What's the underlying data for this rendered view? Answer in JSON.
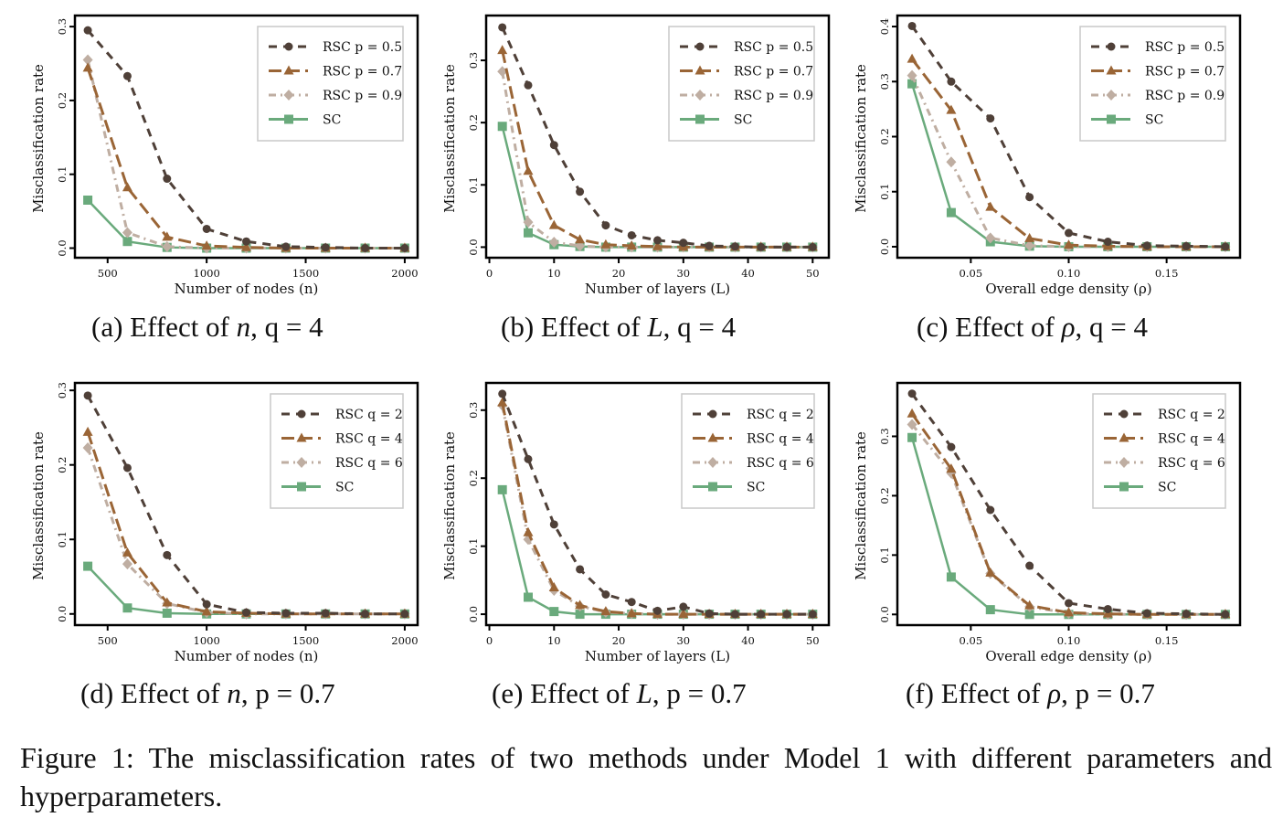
{
  "colors": {
    "rsc_a": "#4f4038",
    "rsc_b": "#9a6536",
    "rsc_c": "#bfaea2",
    "sc": "#6aaa7c",
    "axis": "#000000",
    "legend_border": "#c8c8c8"
  },
  "figure_caption": "Figure 1: The misclassification rates of two methods under Model 1 with different parameters and hyperparameters.",
  "subcaptions": [
    {
      "label": "(a) Effect of ",
      "var": "n",
      "rest": ", q = 4"
    },
    {
      "label": "(b) Effect of ",
      "var": "L",
      "rest": ", q = 4"
    },
    {
      "label": "(c) Effect of ",
      "var": "ρ",
      "rest": ", q = 4"
    },
    {
      "label": "(d) Effect of ",
      "var": "n",
      "rest": ", p = 0.7"
    },
    {
      "label": "(e) Effect of ",
      "var": "L",
      "rest": ", p = 0.7"
    },
    {
      "label": "(f) Effect of ",
      "var": "ρ",
      "rest": ", p = 0.7"
    }
  ],
  "chart_data": [
    {
      "id": "a",
      "type": "line",
      "title": "",
      "xlabel": "Number of nodes (n)",
      "ylabel": "Misclassification rate",
      "x": [
        400,
        600,
        800,
        1000,
        1200,
        1400,
        1600,
        1800,
        2000
      ],
      "xticks": [
        500,
        1000,
        1500,
        2000
      ],
      "xtick_labels": [
        "500",
        "1000",
        "1500",
        "2000"
      ],
      "xlim": [
        335,
        2065
      ],
      "yticks": [
        0.0,
        0.1,
        0.2,
        0.3
      ],
      "ytick_labels": [
        "0.0",
        "0.1",
        "0.2",
        "0.3"
      ],
      "ylim": [
        -0.013,
        0.315
      ],
      "legend_position": "top-right",
      "series": [
        {
          "name": "RSC p = 0.5",
          "style": "dash",
          "marker": "circle",
          "color_key": "rsc_a",
          "values": [
            0.295,
            0.233,
            0.094,
            0.026,
            0.009,
            0.002,
            0.001,
            0.0,
            0.0
          ]
        },
        {
          "name": "RSC p = 0.7",
          "style": "longdash",
          "marker": "triangle",
          "color_key": "rsc_b",
          "values": [
            0.244,
            0.082,
            0.015,
            0.003,
            0.001,
            0.0,
            0.0,
            0.0,
            0.0
          ]
        },
        {
          "name": "RSC p = 0.9",
          "style": "dashdot",
          "marker": "diamond",
          "color_key": "rsc_c",
          "values": [
            0.255,
            0.021,
            0.002,
            0.0,
            0.0,
            0.0,
            0.0,
            0.0,
            0.0
          ]
        },
        {
          "name": "SC",
          "style": "solid",
          "marker": "square",
          "color_key": "sc",
          "values": [
            0.065,
            0.009,
            0.001,
            0.0,
            0.0,
            0.0,
            0.0,
            0.0,
            0.0
          ]
        }
      ]
    },
    {
      "id": "b",
      "type": "line",
      "title": "",
      "xlabel": "Number of layers (L)",
      "ylabel": "Misclassification rate",
      "x": [
        2,
        6,
        10,
        14,
        18,
        22,
        26,
        30,
        34,
        38,
        42,
        46,
        50
      ],
      "xticks": [
        0,
        10,
        20,
        30,
        40,
        50
      ],
      "xtick_labels": [
        "0",
        "10",
        "20",
        "30",
        "40",
        "50"
      ],
      "xlim": [
        -0.5,
        52.5
      ],
      "yticks": [
        0.0,
        0.1,
        0.2,
        0.3
      ],
      "ytick_labels": [
        "0.0",
        "0.1",
        "0.2",
        "0.3"
      ],
      "ylim": [
        -0.017,
        0.372
      ],
      "legend_position": "top-right",
      "series": [
        {
          "name": "RSC p = 0.5",
          "style": "dash",
          "marker": "circle",
          "color_key": "rsc_a",
          "values": [
            0.353,
            0.26,
            0.164,
            0.089,
            0.035,
            0.019,
            0.011,
            0.007,
            0.002,
            0.001,
            0.0,
            0.0,
            0.0
          ]
        },
        {
          "name": "RSC p = 0.7",
          "style": "longdash",
          "marker": "triangle",
          "color_key": "rsc_b",
          "values": [
            0.316,
            0.122,
            0.035,
            0.012,
            0.004,
            0.002,
            0.001,
            0.0,
            0.0,
            0.0,
            0.0,
            0.0,
            0.0
          ]
        },
        {
          "name": "RSC p = 0.9",
          "style": "dashdot",
          "marker": "diamond",
          "color_key": "rsc_c",
          "values": [
            0.282,
            0.04,
            0.008,
            0.002,
            0.0,
            0.0,
            0.0,
            0.0,
            0.0,
            0.0,
            0.0,
            0.0,
            0.0
          ]
        },
        {
          "name": "SC",
          "style": "solid",
          "marker": "square",
          "color_key": "sc",
          "values": [
            0.194,
            0.023,
            0.004,
            0.001,
            0.0,
            0.0,
            0.0,
            0.0,
            0.0,
            0.0,
            0.0,
            0.0,
            0.0
          ]
        }
      ]
    },
    {
      "id": "c",
      "type": "line",
      "title": "",
      "xlabel": "Overall edge density (ρ)",
      "ylabel": "Misclassification rate",
      "x": [
        0.02,
        0.04,
        0.06,
        0.08,
        0.1,
        0.12,
        0.14,
        0.16,
        0.18
      ],
      "xticks": [
        0.05,
        0.1,
        0.15
      ],
      "xtick_labels": [
        "0.05",
        "0.10",
        "0.15"
      ],
      "xlim": [
        0.0125,
        0.1875
      ],
      "yticks": [
        0.0,
        0.1,
        0.2,
        0.3,
        0.4
      ],
      "ytick_labels": [
        "0.0",
        "0.1",
        "0.2",
        "0.3",
        "0.4"
      ],
      "ylim": [
        -0.02,
        0.42
      ],
      "legend_position": "top-right",
      "series": [
        {
          "name": "RSC p = 0.5",
          "style": "dash",
          "marker": "circle",
          "color_key": "rsc_a",
          "values": [
            0.401,
            0.3,
            0.233,
            0.09,
            0.025,
            0.009,
            0.002,
            0.001,
            0.0
          ]
        },
        {
          "name": "RSC p = 0.7",
          "style": "longdash",
          "marker": "triangle",
          "color_key": "rsc_b",
          "values": [
            0.341,
            0.248,
            0.072,
            0.015,
            0.003,
            0.001,
            0.0,
            0.0,
            0.0
          ]
        },
        {
          "name": "RSC p = 0.9",
          "style": "dashdot",
          "marker": "diamond",
          "color_key": "rsc_c",
          "values": [
            0.311,
            0.154,
            0.016,
            0.002,
            0.0,
            0.0,
            0.0,
            0.0,
            0.0
          ]
        },
        {
          "name": "SC",
          "style": "solid",
          "marker": "square",
          "color_key": "sc",
          "values": [
            0.296,
            0.062,
            0.009,
            0.001,
            0.0,
            0.0,
            0.0,
            0.0,
            0.0
          ]
        }
      ]
    },
    {
      "id": "d",
      "type": "line",
      "title": "",
      "xlabel": "Number of nodes (n)",
      "ylabel": "Misclassification rate",
      "x": [
        400,
        600,
        800,
        1000,
        1200,
        1400,
        1600,
        1800,
        2000
      ],
      "xticks": [
        500,
        1000,
        1500,
        2000
      ],
      "xtick_labels": [
        "500",
        "1000",
        "1500",
        "2000"
      ],
      "xlim": [
        335,
        2065
      ],
      "yticks": [
        0.0,
        0.1,
        0.2,
        0.3
      ],
      "ytick_labels": [
        "0.0",
        "0.1",
        "0.2",
        "0.3"
      ],
      "ylim": [
        -0.015,
        0.31
      ],
      "legend_position": "top-right",
      "series": [
        {
          "name": "RSC q = 2",
          "style": "dash",
          "marker": "circle",
          "color_key": "rsc_a",
          "values": [
            0.293,
            0.196,
            0.079,
            0.013,
            0.002,
            0.001,
            0.001,
            0.0,
            0.0
          ]
        },
        {
          "name": "RSC q = 4",
          "style": "longdash",
          "marker": "triangle",
          "color_key": "rsc_b",
          "values": [
            0.244,
            0.082,
            0.015,
            0.003,
            0.001,
            0.0,
            0.0,
            0.0,
            0.0
          ]
        },
        {
          "name": "RSC q = 6",
          "style": "dashdot",
          "marker": "diamond",
          "color_key": "rsc_c",
          "values": [
            0.223,
            0.067,
            0.014,
            0.002,
            0.0,
            0.0,
            0.0,
            0.0,
            0.0
          ]
        },
        {
          "name": "SC",
          "style": "solid",
          "marker": "square",
          "color_key": "sc",
          "values": [
            0.064,
            0.008,
            0.001,
            0.0,
            0.0,
            0.0,
            0.0,
            0.0,
            0.0
          ]
        }
      ]
    },
    {
      "id": "e",
      "type": "line",
      "title": "",
      "xlabel": "Number of layers (L)",
      "ylabel": "Misclassification rate",
      "x": [
        2,
        6,
        10,
        14,
        18,
        22,
        26,
        30,
        34,
        38,
        42,
        46,
        50
      ],
      "xticks": [
        0,
        10,
        20,
        30,
        40,
        50
      ],
      "xtick_labels": [
        "0",
        "10",
        "20",
        "30",
        "40",
        "50"
      ],
      "xlim": [
        -0.5,
        52.5
      ],
      "yticks": [
        0.0,
        0.1,
        0.2,
        0.3
      ],
      "ytick_labels": [
        "0.0",
        "0.1",
        "0.2",
        "0.3"
      ],
      "ylim": [
        -0.016,
        0.34
      ],
      "legend_position": "top-right",
      "series": [
        {
          "name": "RSC q = 2",
          "style": "dash",
          "marker": "circle",
          "color_key": "rsc_a",
          "values": [
            0.324,
            0.228,
            0.132,
            0.066,
            0.029,
            0.018,
            0.005,
            0.011,
            0.001,
            0.0,
            0.0,
            0.0,
            0.0
          ]
        },
        {
          "name": "RSC q = 4",
          "style": "longdash",
          "marker": "triangle",
          "color_key": "rsc_b",
          "values": [
            0.311,
            0.12,
            0.039,
            0.013,
            0.004,
            0.001,
            0.0,
            0.0,
            0.0,
            0.0,
            0.0,
            0.0,
            0.0
          ]
        },
        {
          "name": "RSC q = 6",
          "style": "dashdot",
          "marker": "diamond",
          "color_key": "rsc_c",
          "values": [
            0.307,
            0.11,
            0.035,
            0.012,
            0.003,
            0.001,
            0.0,
            0.0,
            0.0,
            0.0,
            0.0,
            0.0,
            0.0
          ]
        },
        {
          "name": "SC",
          "style": "solid",
          "marker": "square",
          "color_key": "sc",
          "values": [
            0.183,
            0.025,
            0.004,
            0.0,
            0.0,
            0.0,
            0.0,
            0.0,
            0.0,
            0.0,
            0.0,
            0.0,
            0.0
          ]
        }
      ]
    },
    {
      "id": "f",
      "type": "line",
      "title": "",
      "xlabel": "Overall edge density (ρ)",
      "ylabel": "Misclassification rate",
      "x": [
        0.02,
        0.04,
        0.06,
        0.08,
        0.1,
        0.12,
        0.14,
        0.16,
        0.18
      ],
      "xticks": [
        0.05,
        0.1,
        0.15
      ],
      "xtick_labels": [
        "0.05",
        "0.10",
        "0.15"
      ],
      "xlim": [
        0.0125,
        0.1875
      ],
      "yticks": [
        0.0,
        0.1,
        0.2,
        0.3
      ],
      "ytick_labels": [
        "0.0",
        "0.1",
        "0.2",
        "0.3"
      ],
      "ylim": [
        -0.018,
        0.39
      ],
      "legend_position": "top-right",
      "series": [
        {
          "name": "RSC q = 2",
          "style": "dash",
          "marker": "circle",
          "color_key": "rsc_a",
          "values": [
            0.372,
            0.282,
            0.176,
            0.082,
            0.019,
            0.009,
            0.002,
            0.001,
            0.0
          ]
        },
        {
          "name": "RSC q = 4",
          "style": "longdash",
          "marker": "triangle",
          "color_key": "rsc_b",
          "values": [
            0.338,
            0.245,
            0.07,
            0.015,
            0.003,
            0.001,
            0.0,
            0.0,
            0.0
          ]
        },
        {
          "name": "RSC q = 6",
          "style": "dashdot",
          "marker": "diamond",
          "color_key": "rsc_c",
          "values": [
            0.32,
            0.238,
            0.069,
            0.013,
            0.002,
            0.0,
            0.0,
            0.0,
            0.0
          ]
        },
        {
          "name": "SC",
          "style": "solid",
          "marker": "square",
          "color_key": "sc",
          "values": [
            0.298,
            0.063,
            0.008,
            0.0,
            0.0,
            0.0,
            0.0,
            0.0,
            0.0
          ]
        }
      ]
    }
  ]
}
